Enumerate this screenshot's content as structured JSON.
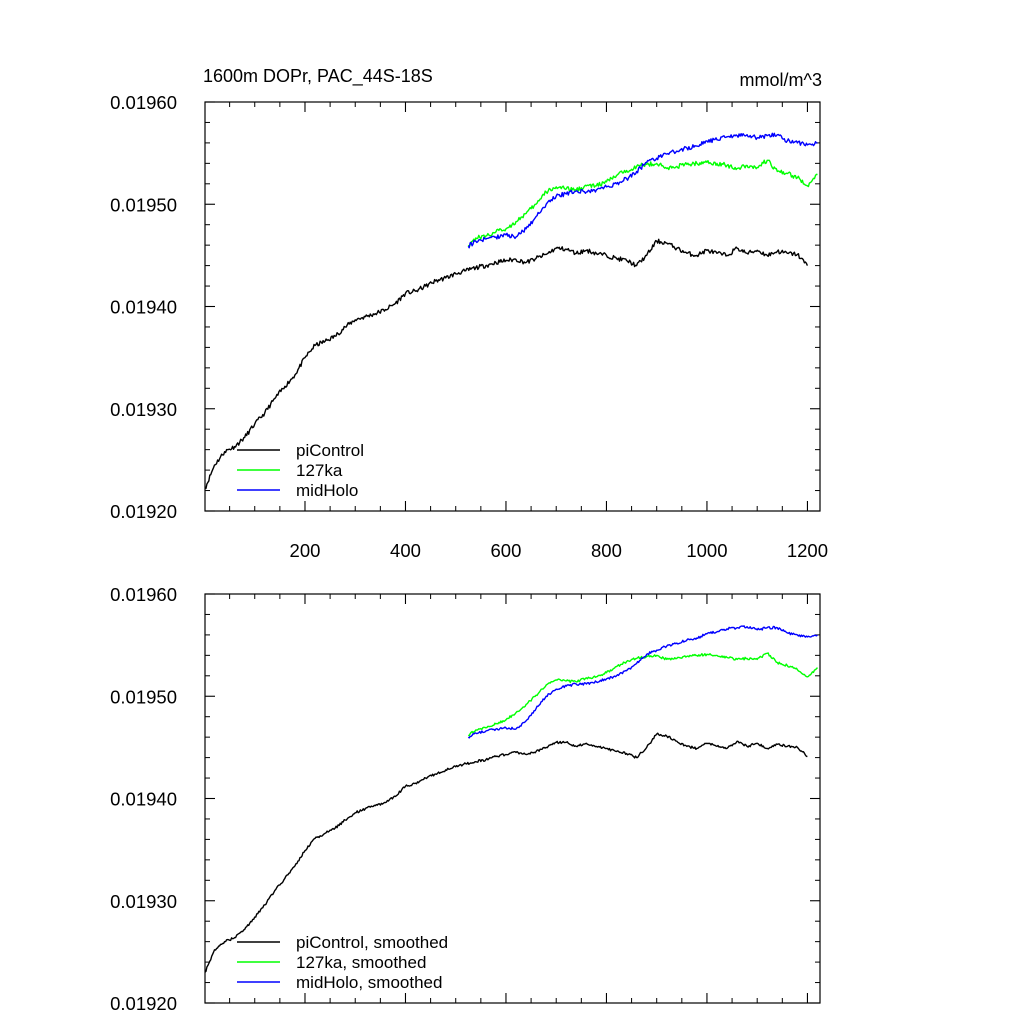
{
  "chart_data": [
    {
      "type": "line",
      "title": "1600m DOPr, PAC_44S-18S",
      "units": "mmol/m^3",
      "xlim": [
        1,
        1225
      ],
      "ylim": [
        0.0192,
        0.0196
      ],
      "xticks": [
        200,
        400,
        600,
        800,
        1000,
        1200
      ],
      "xtick_labels": [
        "200",
        "400",
        "600",
        "800",
        "1000",
        "1200"
      ],
      "yticks": [
        0.0192,
        0.0193,
        0.0194,
        0.0195,
        0.0196
      ],
      "ytick_labels": [
        "0.01920",
        "0.01930",
        "0.01940",
        "0.01950",
        "0.01960"
      ],
      "legend": [
        "piControl",
        "127ka",
        "midHolo"
      ],
      "legend_position": "bottom-left",
      "series": [
        {
          "name": "piControl",
          "color": "#000000",
          "x": [
            1,
            20,
            40,
            60,
            80,
            100,
            120,
            140,
            160,
            180,
            200,
            220,
            240,
            260,
            280,
            300,
            320,
            340,
            360,
            380,
            400,
            420,
            440,
            460,
            480,
            500,
            520,
            540,
            560,
            580,
            600,
            620,
            640,
            660,
            680,
            700,
            720,
            740,
            760,
            780,
            800,
            820,
            840,
            860,
            880,
            900,
            920,
            940,
            960,
            980,
            1000,
            1020,
            1040,
            1060,
            1080,
            1100,
            1120,
            1140,
            1160,
            1180,
            1200
          ],
          "values": [
            0.019222,
            0.019245,
            0.019258,
            0.019263,
            0.019272,
            0.019285,
            0.019296,
            0.01931,
            0.019322,
            0.019333,
            0.01935,
            0.019362,
            0.019366,
            0.019371,
            0.01938,
            0.019387,
            0.01939,
            0.019393,
            0.019397,
            0.019403,
            0.019413,
            0.019415,
            0.01942,
            0.019425,
            0.019428,
            0.019432,
            0.019435,
            0.019438,
            0.01944,
            0.019443,
            0.019445,
            0.019446,
            0.019443,
            0.019447,
            0.019451,
            0.019457,
            0.019456,
            0.019452,
            0.019455,
            0.019452,
            0.01945,
            0.019447,
            0.019445,
            0.01944,
            0.01945,
            0.019464,
            0.019462,
            0.019457,
            0.019452,
            0.01945,
            0.019455,
            0.019452,
            0.01945,
            0.019457,
            0.019452,
            0.019455,
            0.01945,
            0.019454,
            0.019452,
            0.019451,
            0.01944
          ]
        },
        {
          "name": "127ka",
          "color": "#00ff00",
          "x": [
            525,
            540,
            560,
            580,
            600,
            620,
            640,
            660,
            680,
            700,
            720,
            740,
            760,
            780,
            800,
            820,
            840,
            860,
            880,
            900,
            920,
            940,
            960,
            980,
            1000,
            1020,
            1040,
            1060,
            1080,
            1100,
            1120,
            1140,
            1160,
            1180,
            1200,
            1220
          ],
          "values": [
            0.01946,
            0.019467,
            0.019469,
            0.019473,
            0.019476,
            0.019483,
            0.019491,
            0.0195,
            0.019512,
            0.019517,
            0.019515,
            0.019514,
            0.019518,
            0.019518,
            0.019522,
            0.019528,
            0.019533,
            0.019537,
            0.019539,
            0.01954,
            0.019535,
            0.019537,
            0.019539,
            0.01954,
            0.019541,
            0.01954,
            0.019538,
            0.019535,
            0.019538,
            0.019536,
            0.019543,
            0.019532,
            0.01953,
            0.019526,
            0.019518,
            0.019529
          ]
        },
        {
          "name": "midHolo",
          "color": "#0000ff",
          "x": [
            525,
            540,
            560,
            580,
            600,
            620,
            640,
            660,
            680,
            700,
            720,
            740,
            760,
            780,
            800,
            820,
            840,
            860,
            880,
            900,
            920,
            940,
            960,
            980,
            1000,
            1020,
            1040,
            1060,
            1080,
            1100,
            1120,
            1140,
            1160,
            1180,
            1200,
            1220
          ],
          "values": [
            0.019459,
            0.019464,
            0.019466,
            0.019468,
            0.01947,
            0.019468,
            0.019476,
            0.019488,
            0.0195,
            0.019508,
            0.01951,
            0.019513,
            0.019512,
            0.019514,
            0.019517,
            0.01952,
            0.019525,
            0.019532,
            0.019541,
            0.019545,
            0.019549,
            0.019552,
            0.019555,
            0.019557,
            0.019562,
            0.019563,
            0.019566,
            0.019567,
            0.019568,
            0.019565,
            0.019567,
            0.019568,
            0.019562,
            0.01956,
            0.019558,
            0.01956
          ]
        }
      ]
    },
    {
      "type": "line",
      "title": "",
      "units": "",
      "xlim": [
        1,
        1225
      ],
      "ylim": [
        0.0192,
        0.0196
      ],
      "xticks": [
        200,
        400,
        600,
        800,
        1000,
        1200
      ],
      "xtick_labels": [],
      "yticks": [
        0.0192,
        0.0193,
        0.0194,
        0.0195,
        0.0196
      ],
      "ytick_labels": [
        "0.01920",
        "0.01930",
        "0.01940",
        "0.01950",
        "0.01960"
      ],
      "legend": [
        "piControl, smoothed",
        "127ka, smoothed",
        "midHolo, smoothed"
      ],
      "legend_position": "bottom-left",
      "series": [
        {
          "name": "piControl, smoothed",
          "color": "#000000",
          "x": [
            1,
            20,
            40,
            60,
            80,
            100,
            120,
            140,
            160,
            180,
            200,
            220,
            240,
            260,
            280,
            300,
            320,
            340,
            360,
            380,
            400,
            420,
            440,
            460,
            480,
            500,
            520,
            540,
            560,
            580,
            600,
            620,
            640,
            660,
            680,
            700,
            720,
            740,
            760,
            780,
            800,
            820,
            840,
            860,
            880,
            900,
            920,
            940,
            960,
            980,
            1000,
            1020,
            1040,
            1060,
            1080,
            1100,
            1120,
            1140,
            1160,
            1180,
            1200
          ],
          "values": [
            0.01923,
            0.019252,
            0.01926,
            0.019264,
            0.019272,
            0.019284,
            0.019296,
            0.01931,
            0.019322,
            0.019334,
            0.019349,
            0.019361,
            0.019366,
            0.019371,
            0.019379,
            0.019386,
            0.01939,
            0.019393,
            0.019396,
            0.019402,
            0.019412,
            0.019415,
            0.01942,
            0.019424,
            0.019428,
            0.019431,
            0.019434,
            0.019436,
            0.019438,
            0.019441,
            0.019443,
            0.019445,
            0.019443,
            0.019446,
            0.01945,
            0.019455,
            0.019455,
            0.019451,
            0.019454,
            0.019451,
            0.019449,
            0.019446,
            0.019444,
            0.01944,
            0.01945,
            0.019463,
            0.019461,
            0.019456,
            0.019451,
            0.019449,
            0.019454,
            0.019451,
            0.019449,
            0.019456,
            0.019451,
            0.019454,
            0.019449,
            0.019453,
            0.019451,
            0.01945,
            0.019441
          ]
        },
        {
          "name": "127ka, smoothed",
          "color": "#00ff00",
          "x": [
            525,
            540,
            560,
            580,
            600,
            620,
            640,
            660,
            680,
            700,
            720,
            740,
            760,
            780,
            800,
            820,
            840,
            860,
            880,
            900,
            920,
            940,
            960,
            980,
            1000,
            1020,
            1040,
            1060,
            1080,
            1100,
            1120,
            1140,
            1160,
            1180,
            1200,
            1220
          ],
          "values": [
            0.019462,
            0.019467,
            0.019469,
            0.019473,
            0.019477,
            0.019484,
            0.019492,
            0.019501,
            0.019511,
            0.019516,
            0.019515,
            0.019514,
            0.019518,
            0.019519,
            0.019523,
            0.019529,
            0.019534,
            0.019537,
            0.019539,
            0.01954,
            0.019536,
            0.019537,
            0.019539,
            0.01954,
            0.019541,
            0.01954,
            0.019538,
            0.019536,
            0.019537,
            0.019536,
            0.019542,
            0.019533,
            0.01953,
            0.019526,
            0.019519,
            0.019528
          ]
        },
        {
          "name": "midHolo, smoothed",
          "color": "#0000ff",
          "x": [
            525,
            540,
            560,
            580,
            600,
            620,
            640,
            660,
            680,
            700,
            720,
            740,
            760,
            780,
            800,
            820,
            840,
            860,
            880,
            900,
            920,
            940,
            960,
            980,
            1000,
            1020,
            1040,
            1060,
            1080,
            1100,
            1120,
            1140,
            1160,
            1180,
            1200,
            1220
          ],
          "values": [
            0.01946,
            0.019464,
            0.019466,
            0.019468,
            0.019469,
            0.019468,
            0.019476,
            0.019488,
            0.0195,
            0.019507,
            0.01951,
            0.019512,
            0.019512,
            0.019514,
            0.019517,
            0.01952,
            0.019525,
            0.019532,
            0.019541,
            0.019545,
            0.019549,
            0.019552,
            0.019555,
            0.019557,
            0.019561,
            0.019563,
            0.019566,
            0.019567,
            0.019568,
            0.019565,
            0.019567,
            0.019567,
            0.019562,
            0.01956,
            0.019558,
            0.01956
          ]
        }
      ]
    }
  ]
}
